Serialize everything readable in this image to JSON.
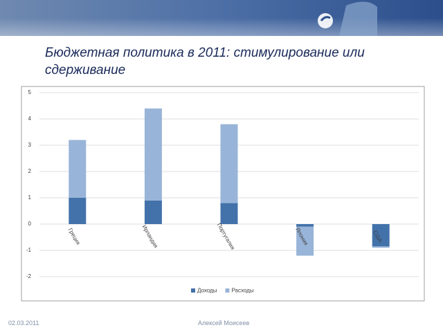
{
  "chart_data": {
    "type": "bar",
    "stacked": true,
    "title": "Бюджетная политика в 2011: стимулирование или сдерживание",
    "categories": [
      "Греция",
      "Ирландия",
      "Португалия",
      "Япония",
      "США"
    ],
    "series": [
      {
        "name": "Доходы",
        "color": "#4372aa",
        "values": [
          1.0,
          0.9,
          0.8,
          -0.1,
          -0.85
        ]
      },
      {
        "name": "Расходы",
        "color": "#98b4d8",
        "values": [
          2.2,
          3.5,
          3.0,
          -1.1,
          -0.05
        ]
      }
    ],
    "ylim": [
      -2,
      5
    ],
    "yticks": [
      -2,
      -1,
      0,
      1,
      2,
      3,
      4,
      5
    ],
    "grid": true,
    "legend": "bottom"
  },
  "footer": {
    "date": "02.03.2011",
    "author": "Алексей Моисеев"
  }
}
